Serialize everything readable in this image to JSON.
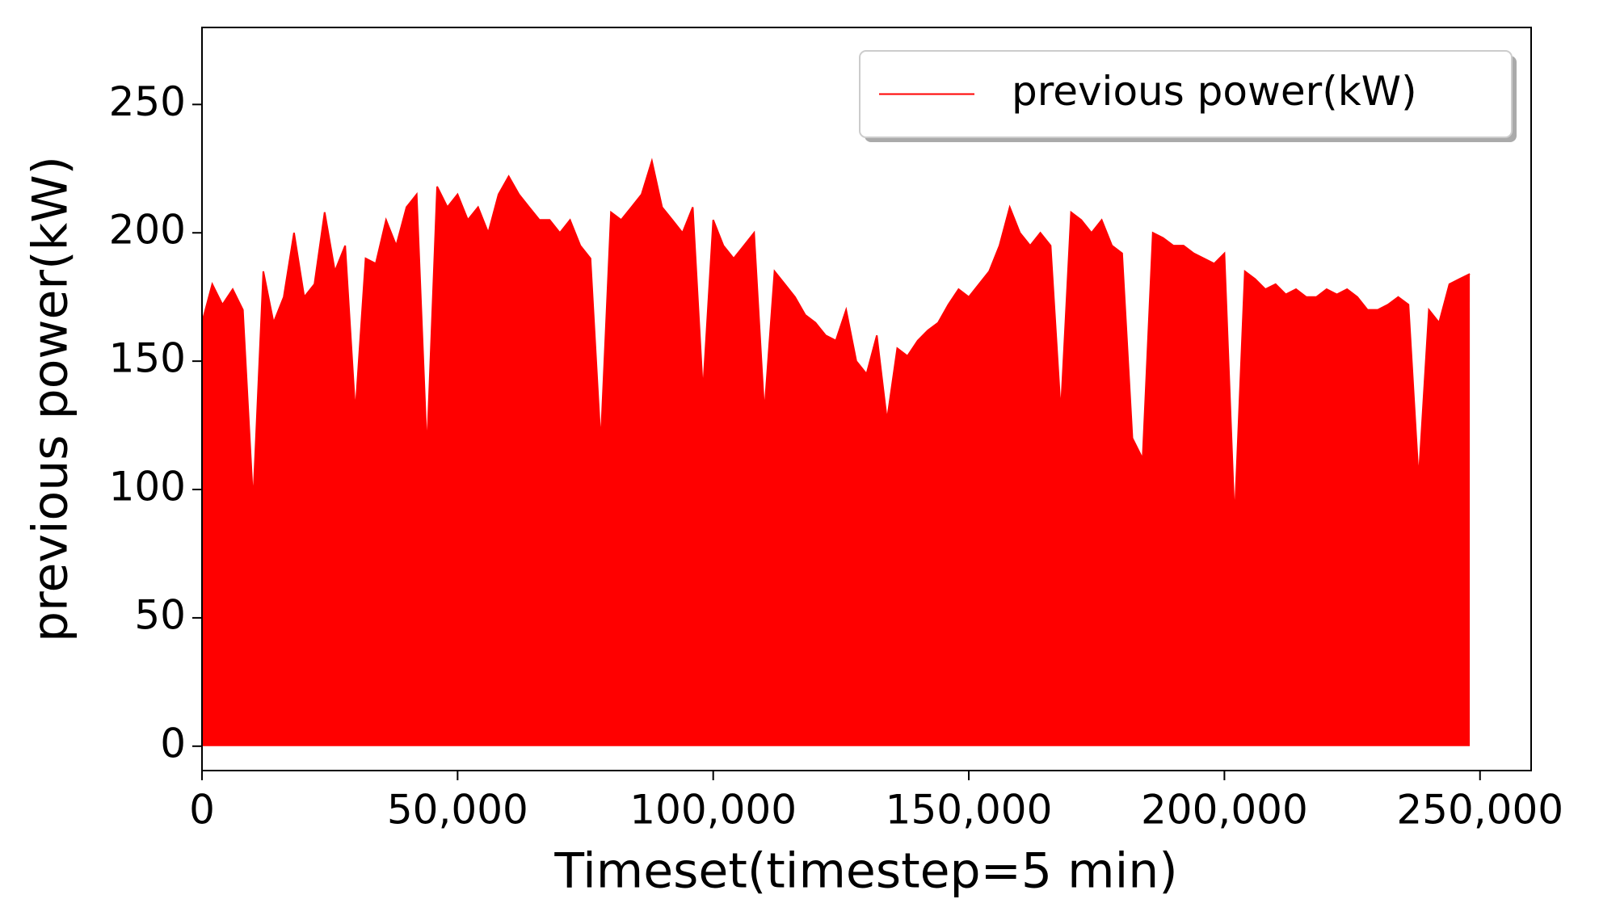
{
  "chart_data": {
    "type": "line",
    "fill_to_zero": true,
    "x_label": "Timeset(timestep=5 min)",
    "y_label": "previous power(kW)",
    "legend": "upper right",
    "x": [
      0,
      2000,
      4000,
      6000,
      8000,
      10000,
      12000,
      14000,
      16000,
      18000,
      20000,
      22000,
      24000,
      26000,
      28000,
      30000,
      32000,
      34000,
      36000,
      38000,
      40000,
      42000,
      44000,
      46000,
      48000,
      50000,
      52000,
      54000,
      56000,
      58000,
      60000,
      62000,
      64000,
      66000,
      68000,
      70000,
      72000,
      74000,
      76000,
      78000,
      80000,
      82000,
      84000,
      86000,
      88000,
      90000,
      92000,
      94000,
      96000,
      98000,
      100000,
      102000,
      104000,
      106000,
      108000,
      110000,
      112000,
      114000,
      116000,
      118000,
      120000,
      122000,
      124000,
      126000,
      128000,
      130000,
      132000,
      134000,
      136000,
      138000,
      140000,
      142000,
      144000,
      146000,
      148000,
      150000,
      152000,
      154000,
      156000,
      158000,
      160000,
      162000,
      164000,
      166000,
      168000,
      170000,
      172000,
      174000,
      176000,
      178000,
      180000,
      182000,
      184000,
      186000,
      188000,
      190000,
      192000,
      194000,
      196000,
      198000,
      200000,
      202000,
      204000,
      206000,
      208000,
      210000,
      212000,
      214000,
      216000,
      218000,
      220000,
      222000,
      224000,
      226000,
      228000,
      230000,
      232000,
      234000,
      236000,
      238000,
      240000,
      242000,
      244000,
      246000,
      248000
    ],
    "series": [
      {
        "name": "previous power(kW)",
        "color": "#ff0000",
        "values": [
          165,
          180,
          172,
          178,
          170,
          95,
          185,
          165,
          175,
          200,
          175,
          180,
          208,
          185,
          195,
          130,
          190,
          188,
          205,
          195,
          210,
          215,
          115,
          218,
          210,
          215,
          205,
          210,
          200,
          215,
          222,
          215,
          210,
          205,
          205,
          200,
          205,
          195,
          190,
          118,
          208,
          205,
          210,
          215,
          228,
          210,
          205,
          200,
          210,
          138,
          205,
          195,
          190,
          195,
          200,
          130,
          185,
          180,
          175,
          168,
          165,
          160,
          158,
          170,
          150,
          145,
          160,
          127,
          155,
          152,
          158,
          162,
          165,
          172,
          178,
          175,
          180,
          185,
          195,
          210,
          200,
          195,
          200,
          195,
          130,
          208,
          205,
          200,
          205,
          195,
          192,
          120,
          112,
          200,
          198,
          195,
          195,
          192,
          190,
          188,
          192,
          88,
          185,
          182,
          178,
          180,
          176,
          178,
          175,
          175,
          178,
          176,
          178,
          175,
          170,
          170,
          172,
          175,
          172,
          104,
          170,
          165,
          180,
          182,
          184
        ]
      }
    ],
    "xlim": [
      0,
      260000
    ],
    "xticks": [
      0,
      {
        "value": 50000,
        "label": "50,000"
      },
      {
        "value": 100000,
        "label": "100,000"
      },
      {
        "value": 150000,
        "label": "150,000"
      },
      {
        "value": 200000,
        "label": "200,000"
      },
      {
        "value": 250000,
        "label": "250,000"
      }
    ],
    "ylim": [
      -9.5,
      280
    ],
    "yticks": [
      0,
      50,
      100,
      150,
      200,
      250
    ]
  }
}
